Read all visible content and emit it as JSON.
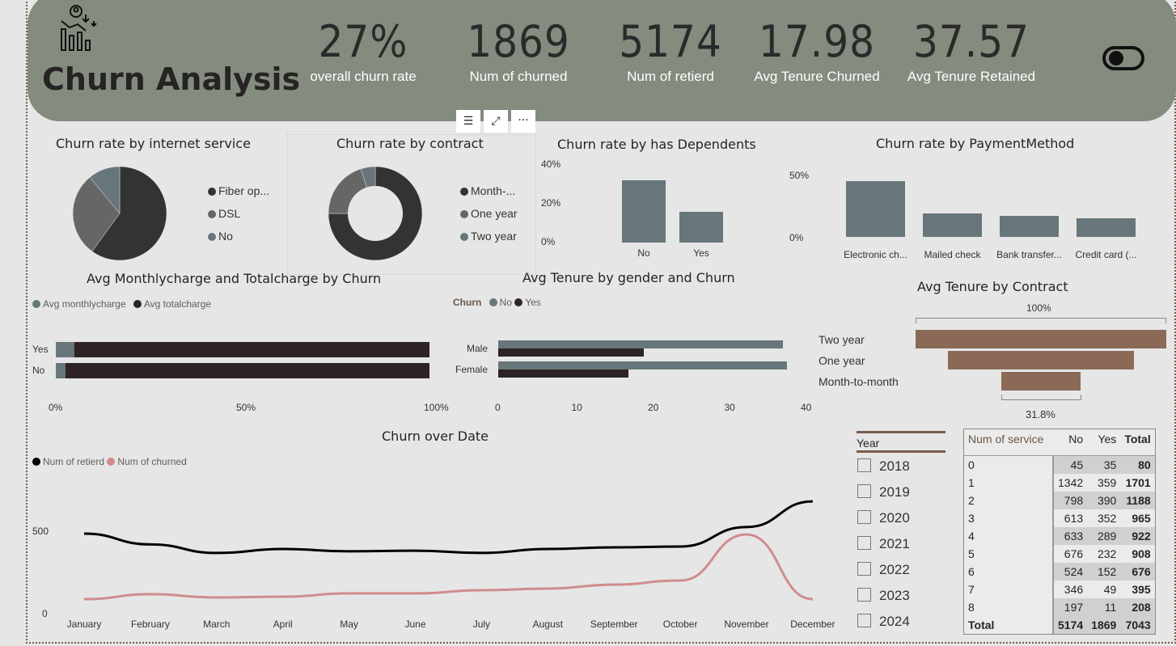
{
  "header": {
    "title": "Churn Analysis",
    "toggle": "on"
  },
  "kpis": [
    {
      "value": "27%",
      "label": "overall churn rate"
    },
    {
      "value": "1869",
      "label": "Num of churned"
    },
    {
      "value": "5174",
      "label": "Num of retierd"
    },
    {
      "value": "17.98",
      "label": "Avg Tenure Churned"
    },
    {
      "value": "37.57",
      "label": "Avg Tenure Retained"
    }
  ],
  "visual_toolbar": {
    "filter": "filter-icon",
    "focus": "focus-mode-icon",
    "more": "more-options-icon"
  },
  "internet": {
    "title": "Churn rate by internet service",
    "items": [
      {
        "label": "Fiber op...",
        "value": 0.6,
        "color": "#333333"
      },
      {
        "label": "DSL",
        "value": 0.29,
        "color": "#666666"
      },
      {
        "label": "No",
        "value": 0.11,
        "color": "#67767a"
      }
    ]
  },
  "contract": {
    "title": "Churn rate by contract",
    "items": [
      {
        "label": "Month-...",
        "value": 0.75,
        "color": "#333333"
      },
      {
        "label": "One year",
        "value": 0.2,
        "color": "#666666"
      },
      {
        "label": "Two year",
        "value": 0.05,
        "color": "#67767a"
      }
    ]
  },
  "dependents": {
    "title": "Churn rate by has Dependents",
    "ticks": [
      "40%",
      "20%",
      "0%"
    ],
    "categories": [
      "No",
      "Yes"
    ],
    "values": [
      32,
      16
    ],
    "max": 40
  },
  "payment": {
    "title": "Churn rate by PaymentMethod",
    "ticks": [
      "50%",
      "0%"
    ],
    "categories": [
      "Electronic ch...",
      "Mailed check",
      "Bank transfer...",
      "Credit card (..."
    ],
    "values": [
      45,
      19,
      17,
      15
    ],
    "max": 50
  },
  "charges": {
    "title": "Avg Monthlycharge and Totalcharge by Churn",
    "legend": [
      "Avg monthlycharge",
      "Avg totalcharge"
    ],
    "rows": [
      {
        "label": "Yes",
        "monthly": 0.05,
        "total": 0.95
      },
      {
        "label": "No",
        "monthly": 0.025,
        "total": 0.975
      }
    ],
    "ticks": [
      "0%",
      "50%",
      "100%"
    ]
  },
  "gender": {
    "title": "Avg Tenure by gender and Churn",
    "legend_title": "Churn",
    "legend": [
      "No",
      "Yes"
    ],
    "rows": [
      {
        "label": "Male",
        "no": 37.3,
        "yes": 19
      },
      {
        "label": "Female",
        "no": 37.8,
        "yes": 17
      }
    ],
    "ticks": [
      "0",
      "10",
      "20",
      "30",
      "40"
    ],
    "max": 40
  },
  "funnel": {
    "title": "Avg Tenure by Contract",
    "top_label": "100%",
    "bottom_label": "31.8%",
    "items": [
      {
        "label": "Two year",
        "value": 1.0
      },
      {
        "label": "One year",
        "value": 0.74
      },
      {
        "label": "Month-to-month",
        "value": 0.318
      }
    ]
  },
  "line": {
    "title": "Churn over Date",
    "legend": [
      "Num of retierd",
      "Num of churned"
    ],
    "yticks": [
      "500",
      "0"
    ],
    "months": [
      "January",
      "February",
      "March",
      "April",
      "May",
      "June",
      "July",
      "August",
      "September",
      "October",
      "November",
      "December"
    ],
    "retired": [
      485,
      420,
      368,
      392,
      378,
      382,
      368,
      392,
      402,
      407,
      525,
      681
    ],
    "churned": [
      88,
      118,
      98,
      103,
      123,
      123,
      142,
      152,
      176,
      201,
      480,
      88
    ]
  },
  "slicer": {
    "title": "Year",
    "years": [
      "2018",
      "2019",
      "2020",
      "2021",
      "2022",
      "2023",
      "2024"
    ]
  },
  "matrix": {
    "headers": [
      "Num of service",
      "No",
      "Yes",
      "Total"
    ],
    "rows": [
      [
        "0",
        "45",
        "35",
        "80"
      ],
      [
        "1",
        "1342",
        "359",
        "1701"
      ],
      [
        "2",
        "798",
        "390",
        "1188"
      ],
      [
        "3",
        "613",
        "352",
        "965"
      ],
      [
        "4",
        "633",
        "289",
        "922"
      ],
      [
        "5",
        "676",
        "232",
        "908"
      ],
      [
        "6",
        "524",
        "152",
        "676"
      ],
      [
        "7",
        "346",
        "49",
        "395"
      ],
      [
        "8",
        "197",
        "11",
        "208"
      ]
    ],
    "total": [
      "Total",
      "5174",
      "1869",
      "7043"
    ]
  }
}
